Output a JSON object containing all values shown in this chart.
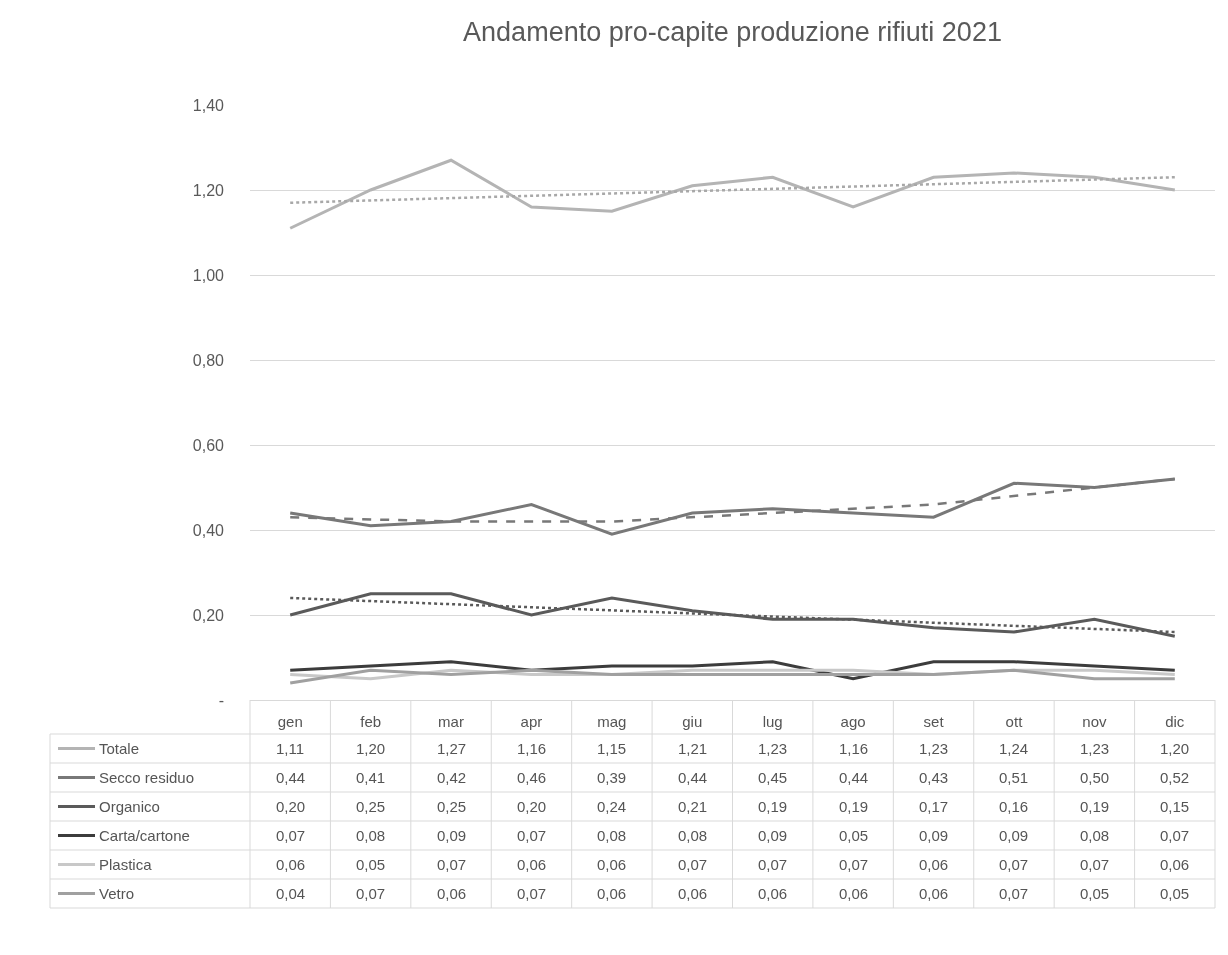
{
  "chart_data": {
    "type": "line",
    "title": "Andamento pro-capite produzione rifiuti 2021",
    "categories": [
      "gen",
      "feb",
      "mar",
      "apr",
      "mag",
      "giu",
      "lug",
      "ago",
      "set",
      "ott",
      "nov",
      "dic"
    ],
    "ylim": [
      0,
      1.4
    ],
    "yticks": [
      {
        "value": 0,
        "label": "-"
      },
      {
        "value": 0.2,
        "label": "0,20"
      },
      {
        "value": 0.4,
        "label": "0,40"
      },
      {
        "value": 0.6,
        "label": "0,60"
      },
      {
        "value": 0.8,
        "label": "0,80"
      },
      {
        "value": 1.0,
        "label": "1,00"
      },
      {
        "value": 1.2,
        "label": "1,20"
      },
      {
        "value": 1.4,
        "label": "1,40"
      }
    ],
    "grid": "y",
    "legend": "bottom",
    "line_style": "solid",
    "series": [
      {
        "name": "Totale",
        "color": "#b4b4b4",
        "values": [
          1.11,
          1.2,
          1.27,
          1.16,
          1.15,
          1.21,
          1.23,
          1.16,
          1.23,
          1.24,
          1.23,
          1.2
        ],
        "value_labels": [
          "1,11",
          "1,20",
          "1,27",
          "1,16",
          "1,15",
          "1,21",
          "1,23",
          "1,16",
          "1,23",
          "1,24",
          "1,23",
          "1,20"
        ]
      },
      {
        "name": "Secco residuo",
        "color": "#787878",
        "values": [
          0.44,
          0.41,
          0.42,
          0.46,
          0.39,
          0.44,
          0.45,
          0.44,
          0.43,
          0.51,
          0.5,
          0.52
        ],
        "value_labels": [
          "0,44",
          "0,41",
          "0,42",
          "0,46",
          "0,39",
          "0,44",
          "0,45",
          "0,44",
          "0,43",
          "0,51",
          "0,50",
          "0,52"
        ]
      },
      {
        "name": "Organico",
        "color": "#5a5a5a",
        "values": [
          0.2,
          0.25,
          0.25,
          0.2,
          0.24,
          0.21,
          0.19,
          0.19,
          0.17,
          0.16,
          0.19,
          0.15
        ],
        "value_labels": [
          "0,20",
          "0,25",
          "0,25",
          "0,20",
          "0,24",
          "0,21",
          "0,19",
          "0,19",
          "0,17",
          "0,16",
          "0,19",
          "0,15"
        ]
      },
      {
        "name": "Carta/cartone",
        "color": "#3c3c3c",
        "values": [
          0.07,
          0.08,
          0.09,
          0.07,
          0.08,
          0.08,
          0.09,
          0.05,
          0.09,
          0.09,
          0.08,
          0.07
        ],
        "value_labels": [
          "0,07",
          "0,08",
          "0,09",
          "0,07",
          "0,08",
          "0,08",
          "0,09",
          "0,05",
          "0,09",
          "0,09",
          "0,08",
          "0,07"
        ]
      },
      {
        "name": "Plastica",
        "color": "#c8c8c8",
        "values": [
          0.06,
          0.05,
          0.07,
          0.06,
          0.06,
          0.07,
          0.07,
          0.07,
          0.06,
          0.07,
          0.07,
          0.06
        ],
        "value_labels": [
          "0,06",
          "0,05",
          "0,07",
          "0,06",
          "0,06",
          "0,07",
          "0,07",
          "0,07",
          "0,06",
          "0,07",
          "0,07",
          "0,06"
        ]
      },
      {
        "name": "Vetro",
        "color": "#a0a0a0",
        "values": [
          0.04,
          0.07,
          0.06,
          0.07,
          0.06,
          0.06,
          0.06,
          0.06,
          0.06,
          0.07,
          0.05,
          0.05
        ],
        "value_labels": [
          "0,04",
          "0,07",
          "0,06",
          "0,07",
          "0,06",
          "0,06",
          "0,06",
          "0,06",
          "0,06",
          "0,07",
          "0,05",
          "0,05"
        ]
      },
      {
        "type": "line",
        "color": "#a8a8a8",
        "line_style": "dotted",
        "x": [
          "gen",
          "dic"
        ],
        "values": [
          1.17,
          1.23
        ]
      },
      {
        "type": "line",
        "color": "#787878",
        "line_style": "dashed",
        "x": [
          "gen",
          "mar",
          "mag",
          "lug",
          "set",
          "dic"
        ],
        "values": [
          0.43,
          0.42,
          0.42,
          0.44,
          0.46,
          0.52
        ]
      },
      {
        "type": "line",
        "color": "#5a5a5a",
        "line_style": "dotted",
        "x": [
          "gen",
          "dic"
        ],
        "values": [
          0.24,
          0.16
        ]
      }
    ]
  }
}
